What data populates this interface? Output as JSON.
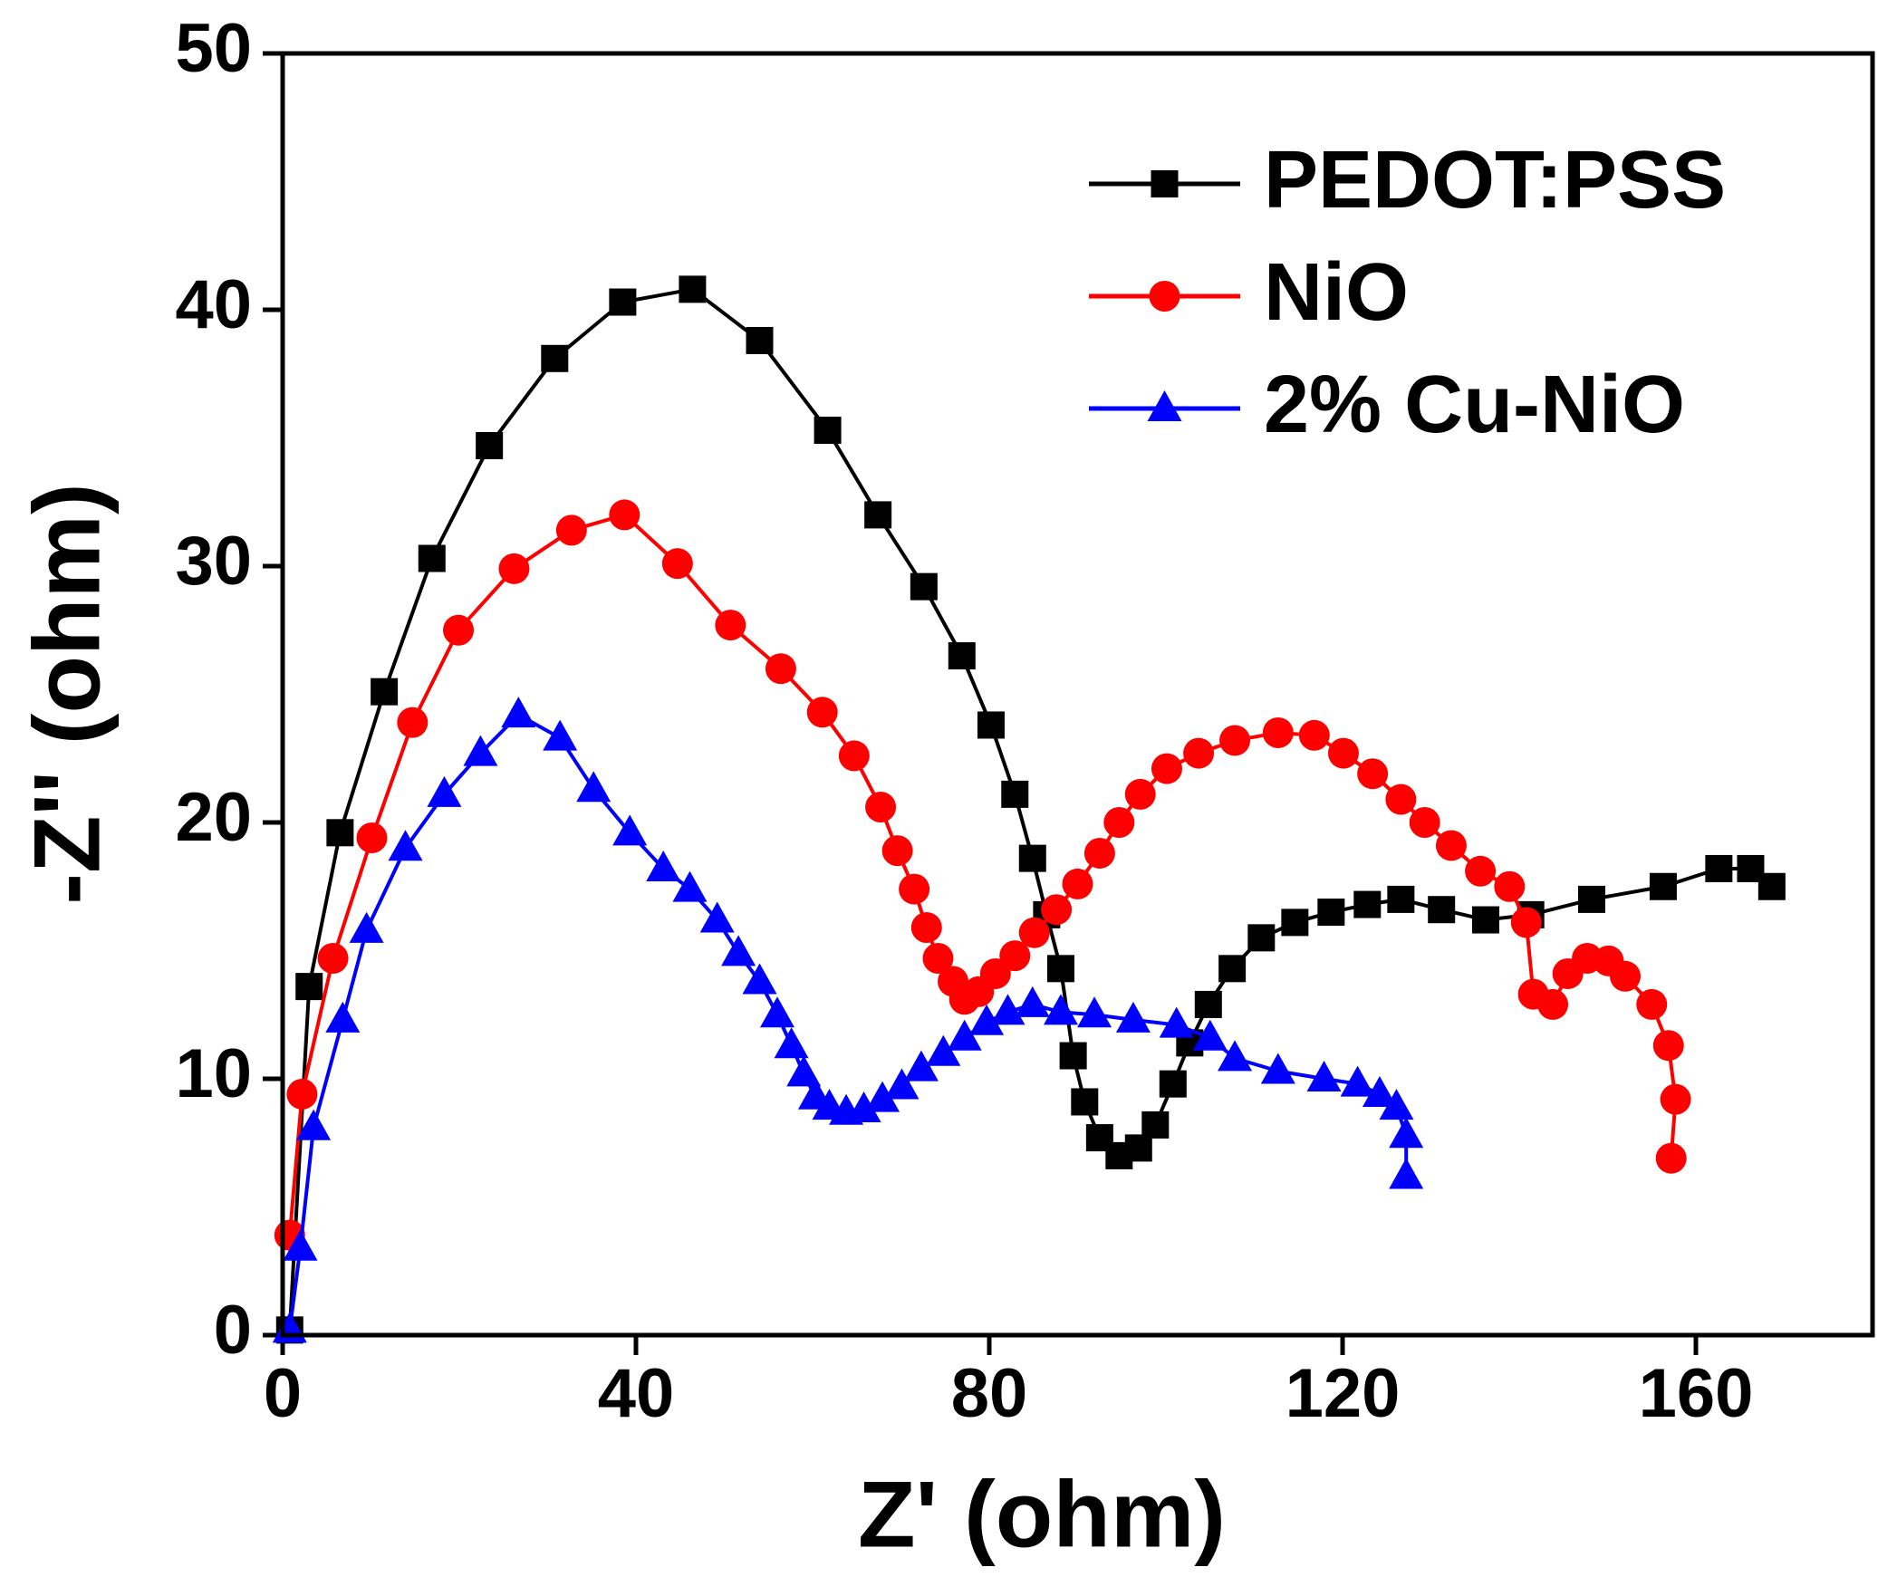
{
  "chart_data": {
    "type": "line",
    "xlabel": "Z' (ohm)",
    "ylabel": "-Z'' (ohm)",
    "xlim": [
      0,
      180
    ],
    "xticks": [
      0,
      40,
      80,
      120,
      160
    ],
    "ylim": [
      0,
      50
    ],
    "yticks": [
      0,
      10,
      20,
      30,
      40,
      50
    ],
    "legend": "upper right",
    "series": [
      {
        "name": "PEDOT:PSS",
        "color": "#000000",
        "marker": "square",
        "x": [
          0.8,
          3,
          6.5,
          11.5,
          16.9,
          23.4,
          30.8,
          38.5,
          46.4,
          54,
          61.7,
          67.4,
          72.6,
          76.9,
          80.2,
          82.9,
          84.9,
          86.5,
          88.1,
          89.5,
          90.8,
          92.5,
          94.7,
          96.9,
          98.8,
          100.8,
          102.7,
          104.8,
          107.5,
          110.8,
          114.6,
          118.7,
          122.8,
          126.6,
          131.2,
          136.2,
          141.3,
          148.2,
          156.3,
          162.6,
          166.2,
          168.6
        ],
        "values": [
          0.2,
          13.6,
          19.6,
          25.1,
          30.3,
          34.7,
          38.1,
          40.3,
          40.8,
          38.8,
          35.3,
          32,
          29.2,
          26.5,
          23.8,
          21.1,
          18.6,
          16.4,
          14.3,
          10.9,
          9.1,
          7.7,
          7.0,
          7.3,
          8.2,
          9.8,
          11.4,
          12.9,
          14.3,
          15.5,
          16.1,
          16.5,
          16.8,
          17.0,
          16.6,
          16.2,
          16.4,
          17.0,
          17.5,
          18.2,
          18.2,
          17.5
        ]
      },
      {
        "name": "NiO",
        "color": "#ff0000",
        "marker": "circle",
        "x": [
          0.8,
          2.2,
          5.7,
          10.1,
          14.7,
          19.9,
          26.2,
          32.7,
          38.7,
          44.7,
          50.7,
          56.4,
          61.1,
          64.7,
          67.7,
          69.6,
          71.5,
          72.9,
          74.2,
          75.9,
          77.2,
          78.8,
          80.7,
          82.9,
          85.1,
          87.6,
          90,
          92.5,
          94.7,
          97.1,
          100.1,
          103.7,
          107.8,
          112.7,
          116.8,
          120.1,
          123.4,
          126.6,
          129.3,
          132.3,
          135.6,
          138.9,
          140.8,
          141.6,
          143.8,
          145.5,
          147.7,
          150.1,
          152,
          155,
          156.9,
          157.7,
          157.2
        ],
        "values": [
          3.9,
          9.4,
          14.7,
          19.4,
          23.9,
          27.5,
          29.9,
          31.4,
          32.0,
          30.1,
          27.7,
          26.0,
          24.3,
          22.6,
          20.6,
          18.9,
          17.4,
          15.9,
          14.7,
          13.8,
          13.1,
          13.4,
          14.1,
          14.8,
          15.7,
          16.6,
          17.6,
          18.8,
          20,
          21.1,
          22.1,
          22.7,
          23.2,
          23.5,
          23.4,
          22.7,
          21.9,
          20.9,
          20,
          19.1,
          18.1,
          17.5,
          16.1,
          13.3,
          12.9,
          14.1,
          14.7,
          14.6,
          14,
          12.9,
          11.3,
          9.2,
          6.9
        ]
      },
      {
        "name": "2% Cu-NiO",
        "color": "#0000ff",
        "marker": "triangle",
        "x": [
          0.8,
          2,
          3.5,
          6.8,
          9.5,
          13.9,
          18.3,
          22.4,
          26.7,
          31.4,
          35.2,
          39.3,
          43.1,
          46.1,
          49.2,
          51.6,
          54,
          56,
          57.6,
          59,
          60.3,
          61.9,
          63.8,
          65.8,
          67.9,
          70.1,
          72.3,
          74.8,
          77.2,
          79.7,
          82.1,
          84.9,
          88.1,
          91.9,
          96.3,
          101.2,
          105,
          107.8,
          112.7,
          117.9,
          121.7,
          124.2,
          126.1,
          127.2,
          127.2
        ],
        "values": [
          0.2,
          3.4,
          8.1,
          12.3,
          15.8,
          19,
          21.1,
          22.7,
          24.2,
          23.3,
          21.3,
          19.6,
          18.2,
          17.4,
          16.2,
          14.9,
          13.8,
          12.5,
          11.3,
          10.2,
          9.3,
          8.9,
          8.7,
          8.8,
          9.2,
          9.7,
          10.4,
          11,
          11.6,
          12.2,
          12.6,
          12.9,
          12.6,
          12.5,
          12.3,
          12.1,
          11.6,
          10.8,
          10.3,
          10,
          9.8,
          9.4,
          8.9,
          7.8,
          6.2
        ]
      }
    ]
  }
}
